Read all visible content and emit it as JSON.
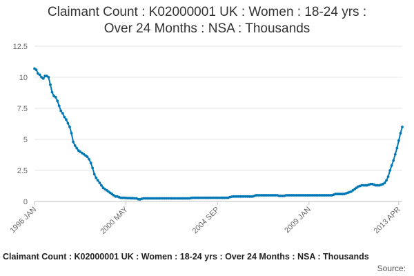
{
  "chart_data": {
    "type": "line",
    "title": "Claimant Count : K02000001 UK : Women : 18-24 yrs :\nOver 24 Months : NSA : Thousands",
    "footer_title": "Claimant Count : K02000001 UK : Women : 18-24 yrs : Over 24 Months : NSA : Thousands",
    "source_label": "Source:",
    "xlabel": "",
    "ylabel": "",
    "ylim": [
      0,
      12.5
    ],
    "y_ticks": [
      "0",
      "2.5",
      "5",
      "7.5",
      "10",
      "12.5"
    ],
    "x_tick_labels": [
      {
        "label": "1996 JAN",
        "index": 0
      },
      {
        "label": "2000 MAY",
        "index": 52
      },
      {
        "label": "2004 SEP",
        "index": 104
      },
      {
        "label": "2009 JAN",
        "index": 156
      },
      {
        "label": "2013 APR",
        "index": 207
      }
    ],
    "grid": true,
    "line_color": "#0077b5",
    "series": [
      {
        "values": [
          10.7,
          10.6,
          10.3,
          10.2,
          10,
          9.9,
          10.1,
          10.1,
          10,
          9.4,
          8.8,
          8.5,
          8.4,
          8.1,
          7.7,
          7.3,
          7.1,
          6.8,
          6.6,
          6.3,
          6,
          5.5,
          4.8,
          4.5,
          4.3,
          4.1,
          4,
          3.9,
          3.8,
          3.7,
          3.6,
          3.4,
          3.1,
          2.7,
          2.2,
          1.9,
          1.7,
          1.5,
          1.3,
          1.1,
          1,
          0.9,
          0.8,
          0.7,
          0.6,
          0.5,
          0.4,
          0.4,
          0.35,
          0.3,
          0.3,
          0.3,
          0.28,
          0.27,
          0.27,
          0.26,
          0.26,
          0.25,
          0.25,
          0.18,
          0.17,
          0.22,
          0.25,
          0.25,
          0.25,
          0.25,
          0.25,
          0.25,
          0.25,
          0.25,
          0.25,
          0.25,
          0.25,
          0.25,
          0.25,
          0.25,
          0.25,
          0.25,
          0.25,
          0.25,
          0.25,
          0.25,
          0.25,
          0.25,
          0.25,
          0.25,
          0.25,
          0.25,
          0.25,
          0.28,
          0.3,
          0.3,
          0.3,
          0.3,
          0.3,
          0.3,
          0.3,
          0.3,
          0.3,
          0.3,
          0.3,
          0.3,
          0.3,
          0.3,
          0.3,
          0.3,
          0.3,
          0.3,
          0.3,
          0.3,
          0.3,
          0.35,
          0.38,
          0.4,
          0.4,
          0.4,
          0.4,
          0.4,
          0.4,
          0.4,
          0.4,
          0.4,
          0.4,
          0.4,
          0.4,
          0.45,
          0.5,
          0.5,
          0.5,
          0.5,
          0.5,
          0.5,
          0.5,
          0.5,
          0.5,
          0.5,
          0.5,
          0.5,
          0.5,
          0.45,
          0.45,
          0.45,
          0.45,
          0.5,
          0.5,
          0.5,
          0.5,
          0.5,
          0.5,
          0.5,
          0.5,
          0.5,
          0.5,
          0.5,
          0.5,
          0.5,
          0.5,
          0.5,
          0.5,
          0.5,
          0.5,
          0.5,
          0.5,
          0.5,
          0.5,
          0.5,
          0.5,
          0.5,
          0.5,
          0.5,
          0.55,
          0.6,
          0.6,
          0.6,
          0.6,
          0.6,
          0.6,
          0.65,
          0.7,
          0.75,
          0.8,
          0.9,
          1,
          1.1,
          1.2,
          1.25,
          1.3,
          1.3,
          1.3,
          1.3,
          1.35,
          1.4,
          1.4,
          1.35,
          1.3,
          1.3,
          1.3,
          1.35,
          1.4,
          1.5,
          1.7,
          2,
          2.5,
          2.9,
          3.3,
          3.8,
          4.3,
          4.9,
          5.5,
          6
        ]
      }
    ]
  }
}
